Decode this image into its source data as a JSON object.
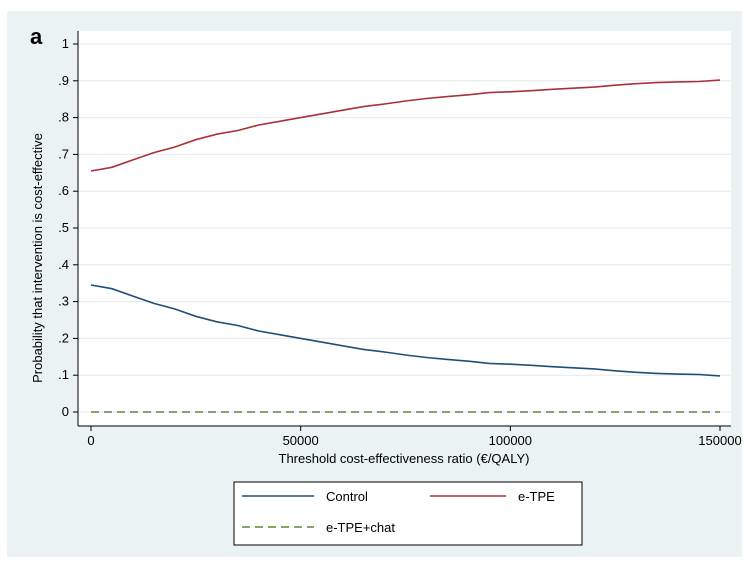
{
  "panel_label": "a",
  "chart_data": {
    "type": "line",
    "title": "",
    "xlabel": "Threshold cost-effectiveness ratio (€/QALY)",
    "ylabel": "Probability that intervention is cost-effective",
    "xlim": [
      0,
      150000
    ],
    "ylim": [
      0,
      1
    ],
    "xticks": [
      0,
      50000,
      100000,
      150000
    ],
    "xtick_labels": [
      "0",
      "50000",
      "100000",
      "150000"
    ],
    "yticks": [
      0,
      0.1,
      0.2,
      0.3,
      0.4,
      0.5,
      0.6,
      0.7,
      0.8,
      0.9,
      1
    ],
    "ytick_labels": [
      "0",
      ".1",
      ".2",
      ".3",
      ".4",
      ".5",
      ".6",
      ".7",
      ".8",
      ".9",
      "1"
    ],
    "grid": true,
    "legend_position": "bottom",
    "series": [
      {
        "name": "Control",
        "color": "#1f4e79",
        "dash": "solid",
        "x": [
          0,
          5000,
          10000,
          15000,
          20000,
          25000,
          30000,
          35000,
          40000,
          45000,
          50000,
          55000,
          60000,
          65000,
          70000,
          75000,
          80000,
          85000,
          90000,
          95000,
          100000,
          105000,
          110000,
          115000,
          120000,
          125000,
          130000,
          135000,
          140000,
          145000,
          150000
        ],
        "values": [
          0.345,
          0.335,
          0.315,
          0.295,
          0.28,
          0.26,
          0.245,
          0.235,
          0.22,
          0.21,
          0.2,
          0.19,
          0.18,
          0.17,
          0.163,
          0.155,
          0.148,
          0.143,
          0.138,
          0.132,
          0.13,
          0.127,
          0.123,
          0.12,
          0.117,
          0.112,
          0.108,
          0.105,
          0.103,
          0.102,
          0.098
        ]
      },
      {
        "name": "e-TPE",
        "color": "#a83236",
        "dash": "solid",
        "x": [
          0,
          5000,
          10000,
          15000,
          20000,
          25000,
          30000,
          35000,
          40000,
          45000,
          50000,
          55000,
          60000,
          65000,
          70000,
          75000,
          80000,
          85000,
          90000,
          95000,
          100000,
          105000,
          110000,
          115000,
          120000,
          125000,
          130000,
          135000,
          140000,
          145000,
          150000
        ],
        "values": [
          0.655,
          0.665,
          0.685,
          0.705,
          0.72,
          0.74,
          0.755,
          0.765,
          0.78,
          0.79,
          0.8,
          0.81,
          0.82,
          0.83,
          0.837,
          0.845,
          0.852,
          0.857,
          0.862,
          0.868,
          0.87,
          0.873,
          0.877,
          0.88,
          0.883,
          0.888,
          0.892,
          0.895,
          0.897,
          0.898,
          0.902
        ]
      },
      {
        "name": "e-TPE+chat",
        "color": "#5a8a3a",
        "dash": "dashed",
        "x": [
          0,
          150000
        ],
        "values": [
          0,
          0
        ]
      }
    ]
  }
}
